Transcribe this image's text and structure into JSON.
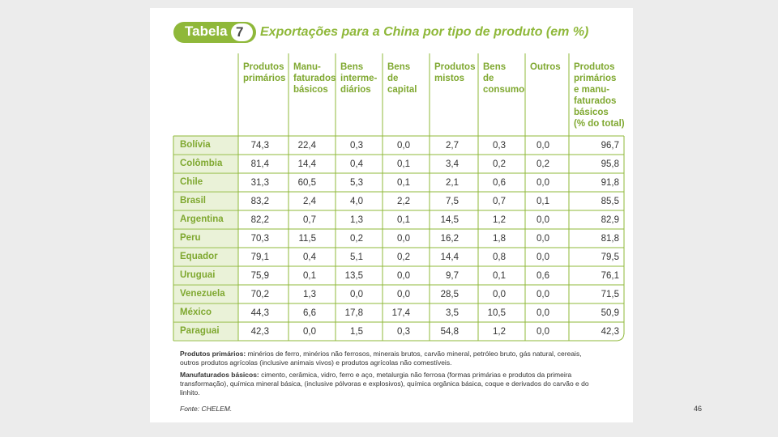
{
  "table": {
    "badge_label": "Tabela",
    "badge_number": "7",
    "title": "Exportações para a China por tipo de produto (em %)",
    "columns": [
      "Produtos\nprimários",
      "Manu-\nfaturados\nbásicos",
      "Bens\ninterme-\ndiários",
      "Bens\nde\ncapital",
      "Produtos\nmistos",
      "Bens\nde\nconsumo",
      "Outros",
      "Produtos\nprimários\ne manu-\nfaturados\nbásicos\n(% do total)"
    ],
    "rows": [
      {
        "country": "Bolívia",
        "values": [
          "74,3",
          "22,4",
          "0,3",
          "0,0",
          "2,7",
          "0,3",
          "0,0",
          "96,7"
        ]
      },
      {
        "country": "Colômbia",
        "values": [
          "81,4",
          "14,4",
          "0,4",
          "0,1",
          "3,4",
          "0,2",
          "0,2",
          "95,8"
        ]
      },
      {
        "country": "Chile",
        "values": [
          "31,3",
          "60,5",
          "5,3",
          "0,1",
          "2,1",
          "0,6",
          "0,0",
          "91,8"
        ]
      },
      {
        "country": "Brasil",
        "values": [
          "83,2",
          "2,4",
          "4,0",
          "2,2",
          "7,5",
          "0,7",
          "0,1",
          "85,5"
        ]
      },
      {
        "country": "Argentina",
        "values": [
          "82,2",
          "0,7",
          "1,3",
          "0,1",
          "14,5",
          "1,2",
          "0,0",
          "82,9"
        ]
      },
      {
        "country": "Peru",
        "values": [
          "70,3",
          "11,5",
          "0,2",
          "0,0",
          "16,2",
          "1,8",
          "0,0",
          "81,8"
        ]
      },
      {
        "country": "Equador",
        "values": [
          "79,1",
          "0,4",
          "5,1",
          "0,2",
          "14,4",
          "0,8",
          "0,0",
          "79,5"
        ]
      },
      {
        "country": "Uruguai",
        "values": [
          "75,9",
          "0,1",
          "13,5",
          "0,0",
          "9,7",
          "0,1",
          "0,6",
          "76,1"
        ]
      },
      {
        "country": "Venezuela",
        "values": [
          "70,2",
          "1,3",
          "0,0",
          "0,0",
          "28,5",
          "0,0",
          "0,0",
          "71,5"
        ]
      },
      {
        "country": "México",
        "values": [
          "44,3",
          "6,6",
          "17,8",
          "17,4",
          "3,5",
          "10,5",
          "0,0",
          "50,9"
        ]
      },
      {
        "country": "Paraguai",
        "values": [
          "42,3",
          "0,0",
          "1,5",
          "0,3",
          "54,8",
          "1,2",
          "0,0",
          "42,3"
        ]
      }
    ]
  },
  "notes": {
    "primary_label": "Produtos primários:",
    "primary_text": " minérios de ferro, minérios não ferrosos, minerais brutos, carvão mineral, petróleo bruto, gás natural, cereais, outros produtos agrícolas (inclusive animais vivos) e produtos agrícolas não comestíveis.",
    "manuf_label": "Manufaturados básicos:",
    "manuf_text": " cimento, cerâmica, vidro, ferro e aço, metalurgia não ferrosa (formas primárias e produtos da primeira transformação), química mineral básica, (inclusive pólvoras e explosivos), química orgânica básica, coque e derivados do carvão e do linhito.",
    "source": "Fonte: CHELEM."
  },
  "page_number": "46",
  "colors": {
    "accent": "#8fb83a",
    "label_green": "#7fa830",
    "country_bg": "#eaf2d8"
  }
}
